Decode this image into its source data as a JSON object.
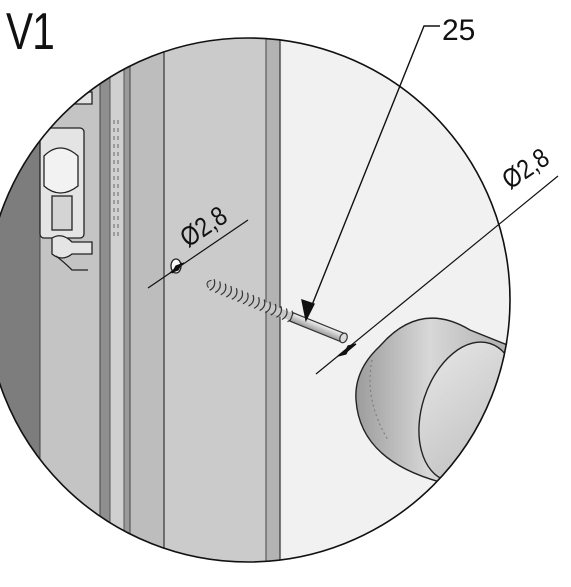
{
  "view_label": "V1",
  "callouts": {
    "part_number": "25",
    "hole_diameter": "Ø2,8",
    "screw_diameter": "Ø2,8"
  },
  "colors": {
    "line": "#111111",
    "profile_dark": "#8a8a8a",
    "profile_mid": "#b9b9b9",
    "profile_light": "#d9d9d9",
    "panel": "#ebebeb",
    "knob": "#c9c9c9"
  },
  "icons": {
    "screw": "countersunk-screw-icon",
    "knob": "cylinder-knob-icon",
    "clip": "hinge-clip-icon"
  }
}
